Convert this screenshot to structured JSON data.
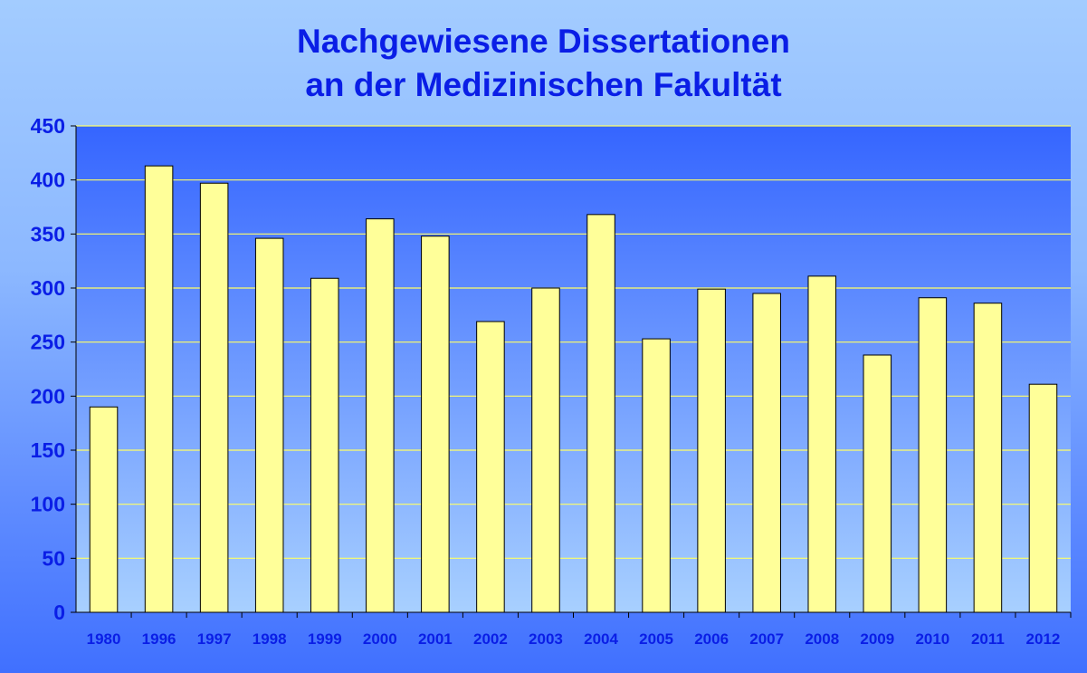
{
  "colors": {
    "bar_fill": "#ffff99",
    "bar_stroke": "#000000",
    "grid": "#ffff66",
    "text": "#0a1ee6",
    "plot_bg_top": "#3565ff",
    "plot_bg_bottom": "#a8d0ff"
  },
  "chart_data": {
    "type": "bar",
    "title": [
      "Nachgewiesene Dissertationen",
      "an der Medizinischen Fakultät"
    ],
    "xlabel": "",
    "ylabel": "",
    "categories": [
      "1980",
      "1996",
      "1997",
      "1998",
      "1999",
      "2000",
      "2001",
      "2002",
      "2003",
      "2004",
      "2005",
      "2006",
      "2007",
      "2008",
      "2009",
      "2010",
      "2011",
      "2012"
    ],
    "values": [
      190,
      413,
      397,
      346,
      309,
      364,
      348,
      269,
      300,
      368,
      253,
      299,
      295,
      311,
      238,
      291,
      286,
      211
    ],
    "ylim": [
      0,
      450
    ],
    "yticks": [
      "0",
      "50",
      "100",
      "150",
      "200",
      "250",
      "300",
      "350",
      "400",
      "450"
    ],
    "grid": true,
    "legend": "none"
  }
}
